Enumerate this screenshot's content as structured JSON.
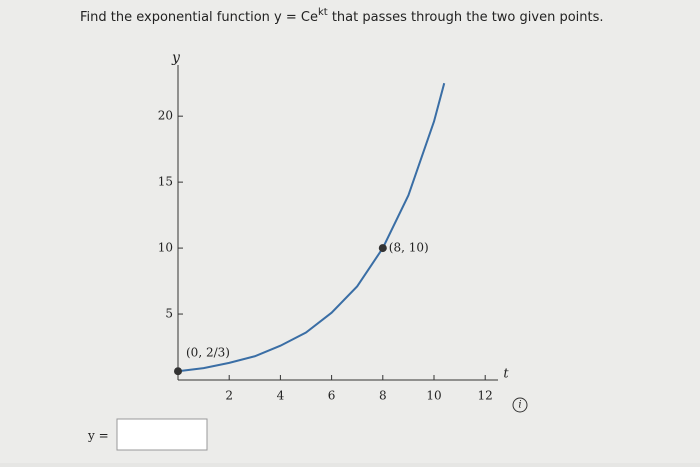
{
  "question": {
    "before": "Find the exponential function y = Ce",
    "exponent": "kt",
    "after": " that passes through the two given points."
  },
  "answer": {
    "label": "y ="
  },
  "chart_data": {
    "type": "line",
    "x": [
      0,
      1,
      2,
      3,
      4,
      5,
      6,
      7,
      8,
      9,
      10,
      10.4
    ],
    "series": [
      {
        "color": "#3a6ea5",
        "values": [
          0.667,
          0.9,
          1.3,
          1.8,
          2.6,
          3.6,
          5.1,
          7.1,
          10,
          14,
          19.6,
          22.5
        ]
      }
    ],
    "points": [
      {
        "x": 0,
        "y": 0.667,
        "label": "(0, 2/3)"
      },
      {
        "x": 8,
        "y": 10,
        "label": "(8, 10)"
      }
    ],
    "xlabel": "t",
    "ylabel": "y",
    "xlim": [
      0,
      12.5
    ],
    "ylim": [
      0,
      23.5
    ],
    "xticks": [
      2,
      4,
      6,
      8,
      10,
      12
    ],
    "yticks": [
      5,
      10,
      15,
      20
    ]
  }
}
